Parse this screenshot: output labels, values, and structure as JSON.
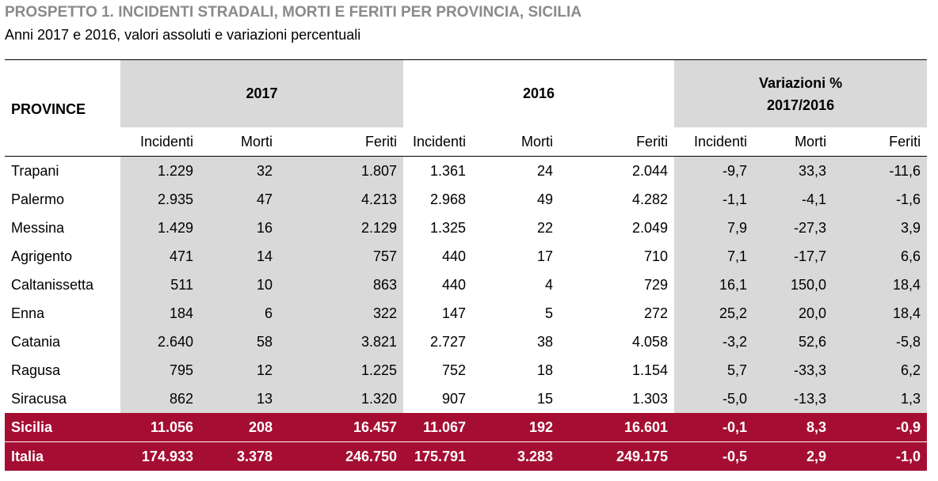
{
  "title": "PROSPETTO 1. INCIDENTI STRADALI, MORTI E FERITI PER PROVINCIA, SICILIA",
  "subtitle": "Anni 2017 e 2016, valori assoluti e variazioni percentuali",
  "header": {
    "province": "PROVINCE",
    "year1": "2017",
    "year2": "2016",
    "variation_line1": "Variazioni %",
    "variation_line2": "2017/2016",
    "columns": [
      "Incidenti",
      "Morti",
      "Feriti",
      "Incidenti",
      "Morti",
      "Feriti",
      "Incidenti",
      "Morti",
      "Feriti"
    ]
  },
  "rows": [
    {
      "name": "Trapani",
      "values": [
        "1.229",
        "32",
        "1.807",
        "1.361",
        "24",
        "2.044",
        "-9,7",
        "33,3",
        "-11,6"
      ]
    },
    {
      "name": "Palermo",
      "values": [
        "2.935",
        "47",
        "4.213",
        "2.968",
        "49",
        "4.282",
        "-1,1",
        "-4,1",
        "-1,6"
      ]
    },
    {
      "name": "Messina",
      "values": [
        "1.429",
        "16",
        "2.129",
        "1.325",
        "22",
        "2.049",
        "7,9",
        "-27,3",
        "3,9"
      ]
    },
    {
      "name": "Agrigento",
      "values": [
        "471",
        "14",
        "757",
        "440",
        "17",
        "710",
        "7,1",
        "-17,7",
        "6,6"
      ]
    },
    {
      "name": "Caltanissetta",
      "values": [
        "511",
        "10",
        "863",
        "440",
        "4",
        "729",
        "16,1",
        "150,0",
        "18,4"
      ]
    },
    {
      "name": "Enna",
      "values": [
        "184",
        "6",
        "322",
        "147",
        "5",
        "272",
        "25,2",
        "20,0",
        "18,4"
      ]
    },
    {
      "name": "Catania",
      "values": [
        "2.640",
        "58",
        "3.821",
        "2.727",
        "38",
        "4.058",
        "-3,2",
        "52,6",
        "-5,8"
      ]
    },
    {
      "name": "Ragusa",
      "values": [
        "795",
        "12",
        "1.225",
        "752",
        "18",
        "1.154",
        "5,7",
        "-33,3",
        "6,2"
      ]
    },
    {
      "name": "Siracusa",
      "values": [
        "862",
        "13",
        "1.320",
        "907",
        "15",
        "1.303",
        "-5,0",
        "-13,3",
        "1,3"
      ]
    }
  ],
  "totals": [
    {
      "name": "Sicilia",
      "values": [
        "11.056",
        "208",
        "16.457",
        "11.067",
        "192",
        "16.601",
        "-0,1",
        "8,3",
        "-0,9"
      ]
    },
    {
      "name": "Italia",
      "values": [
        "174.933",
        "3.378",
        "246.750",
        "175.791",
        "3.283",
        "249.175",
        "-0,5",
        "2,9",
        "-1,0"
      ]
    }
  ],
  "colors": {
    "title_grey": "#8a8a8a",
    "cell_grey": "#d9d9d9",
    "total_red": "#a50e32"
  }
}
